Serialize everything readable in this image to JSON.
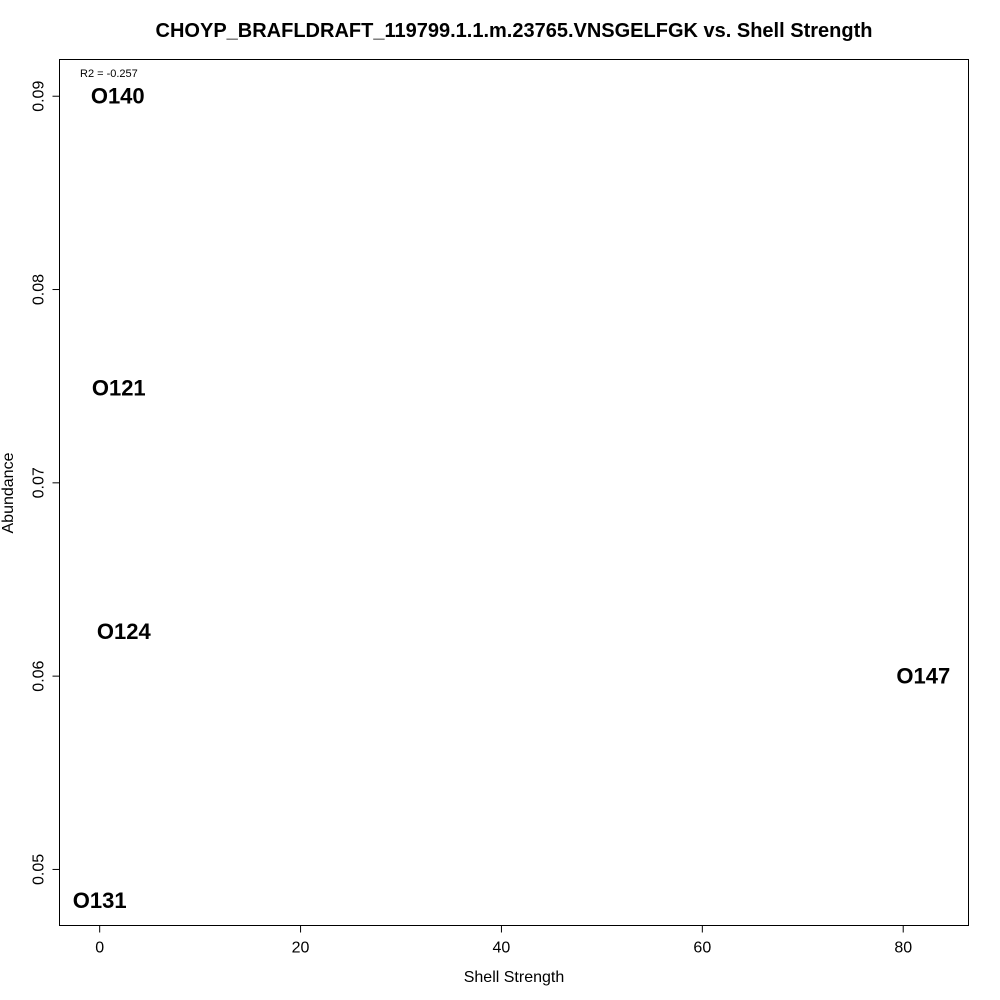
{
  "chart_data": {
    "type": "scatter",
    "title": "CHOYP_BRAFLDRAFT_119799.1.1.m.23765.VNSGELFGK vs. Shell Strength",
    "xlabel": "Shell Strength",
    "ylabel": "Abundance",
    "annotation": "R2 = -0.257",
    "xlim": [
      -4,
      86.5
    ],
    "ylim": [
      0.0471,
      0.0919
    ],
    "x_ticks": [
      {
        "value": 0,
        "label": "0"
      },
      {
        "value": 20,
        "label": "20"
      },
      {
        "value": 40,
        "label": "40"
      },
      {
        "value": 60,
        "label": "60"
      },
      {
        "value": 80,
        "label": "80"
      }
    ],
    "y_ticks": [
      {
        "value": 0.05,
        "label": "0.05"
      },
      {
        "value": 0.06,
        "label": "0.06"
      },
      {
        "value": 0.07,
        "label": "0.07"
      },
      {
        "value": 0.08,
        "label": "0.08"
      },
      {
        "value": 0.09,
        "label": "0.09"
      }
    ],
    "points": [
      {
        "label": "O140",
        "x": 1.8,
        "y": 0.09
      },
      {
        "label": "O121",
        "x": 1.9,
        "y": 0.0749
      },
      {
        "label": "O124",
        "x": 2.4,
        "y": 0.0623
      },
      {
        "label": "O147",
        "x": 82.0,
        "y": 0.06
      },
      {
        "label": "O131",
        "x": 0.0,
        "y": 0.0484
      }
    ],
    "grid": false,
    "legend": "none"
  }
}
